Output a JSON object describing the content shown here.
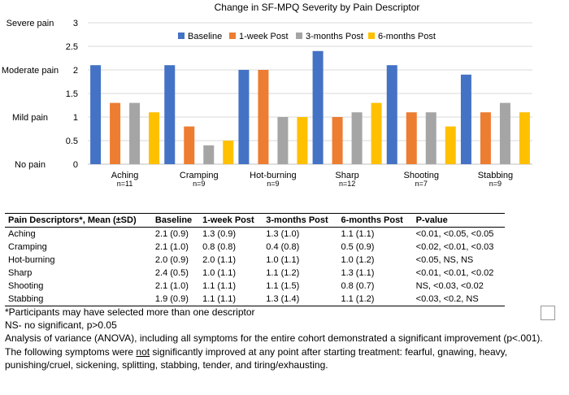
{
  "chart_data": {
    "type": "bar",
    "title": "Change in SF-MPQ Severity by Pain Descriptor",
    "categories": [
      "Aching",
      "Cramping",
      "Hot-burning",
      "Sharp",
      "Shooting",
      "Stabbing"
    ],
    "category_counts": [
      "n=11",
      "n=9",
      "n=9",
      "n=12",
      "n=7",
      "n=9"
    ],
    "ylim": [
      0,
      3
    ],
    "y_ticks": [
      0,
      0.5,
      1,
      1.5,
      2,
      2.5,
      3
    ],
    "y_tick_labels": [
      "0",
      "0.5",
      "1",
      "1.5",
      "2",
      "2.5",
      "3"
    ],
    "y_severity_labels": [
      {
        "label": "Severe pain",
        "value": 3
      },
      {
        "label": "Moderate pain",
        "value": 2
      },
      {
        "label": "Mild pain",
        "value": 1
      },
      {
        "label": "No pain",
        "value": 0
      }
    ],
    "legend_position": "top-right",
    "series": [
      {
        "name": "Baseline",
        "color": "#4472C4",
        "values": [
          2.1,
          2.1,
          2.0,
          2.4,
          2.1,
          1.9
        ]
      },
      {
        "name": "1-week Post",
        "color": "#ED7D31",
        "values": [
          1.3,
          0.8,
          2.0,
          1.0,
          1.1,
          1.1
        ]
      },
      {
        "name": "3-months Post",
        "color": "#A5A5A5",
        "values": [
          1.3,
          0.4,
          1.0,
          1.1,
          1.1,
          1.3
        ]
      },
      {
        "name": "6-months Post",
        "color": "#FFC000",
        "values": [
          1.1,
          0.5,
          1.0,
          1.3,
          0.8,
          1.1
        ]
      }
    ]
  },
  "table": {
    "headers": [
      "Pain Descriptors*, Mean (±SD)",
      "Baseline",
      "1-week Post",
      "3-months Post",
      "6-months Post",
      "P-value"
    ],
    "rows": [
      [
        "Aching",
        "2.1 (0.9)",
        "1.3 (0.9)",
        "1.3 (1.0)",
        "1.1 (1.1)",
        "<0.01, <0.05, <0.05"
      ],
      [
        "Cramping",
        "2.1 (1.0)",
        "0.8 (0.8)",
        "0.4 (0.8)",
        "0.5 (0.9)",
        "<0.02, <0.01, <0.03"
      ],
      [
        "Hot-burning",
        "2.0 (0.9)",
        "2.0 (1.1)",
        "1.0 (1.1)",
        "1.0 (1.2)",
        "<0.05, NS, NS"
      ],
      [
        "Sharp",
        "2.4 (0.5)",
        "1.0 (1.1)",
        "1.1 (1.2)",
        "1.3 (1.1)",
        "<0.01, <0.01, <0.02"
      ],
      [
        "Shooting",
        "2.1 (1.0)",
        "1.1 (1.1)",
        "1.1 (1.5)",
        "0.8 (0.7)",
        "NS, <0.03, <0.02"
      ],
      [
        "Stabbing",
        "1.9 (0.9)",
        "1.1 (1.1)",
        "1.3 (1.4)",
        "1.1 (1.2)",
        "<0.03, <0.2, NS"
      ]
    ]
  },
  "notes": {
    "footnote_participants": "*Participants may have selected more than one descriptor",
    "footnote_ns": "NS- no significant, p>0.05",
    "anova": "Analysis of variance (ANOVA), including all symptoms for the entire cohort demonstrated a significant improvement (p<.001).",
    "not_improved_before": "The following symptoms were ",
    "not_improved_emph": "not",
    "not_improved_after": " significantly improved at any point after starting treatment: fearful, gnawing, heavy, punishing/cruel, sickening, splitting, stabbing, tender, and tiring/exhausting."
  }
}
